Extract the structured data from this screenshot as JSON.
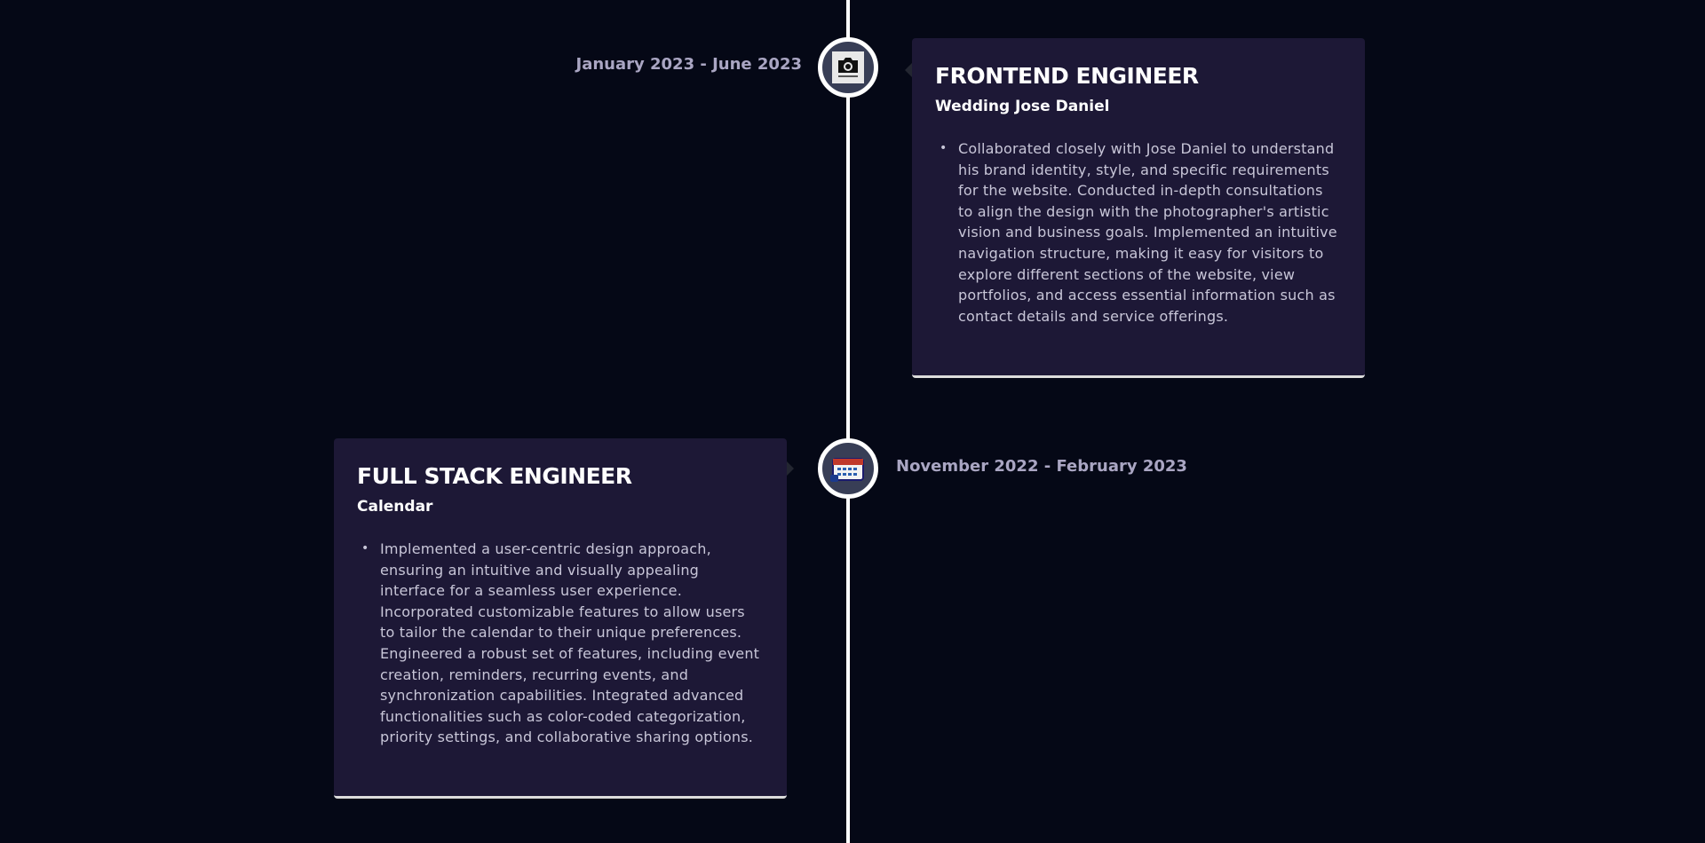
{
  "experiences": [
    {
      "title": "FRONTEND ENGINEER",
      "company": "Wedding Jose Daniel",
      "date": "January 2023 - June 2023",
      "icon": "camera-logo-icon",
      "points": [
        "Collaborated closely with Jose Daniel to understand his brand identity, style, and specific requirements for the website. Conducted in-depth consultations to align the design with the photographer's artistic vision and business goals. Implemented an intuitive navigation structure, making it easy for visitors to explore different sections of the website, view portfolios, and access essential information such as contact details and service offerings."
      ]
    },
    {
      "title": "FULL STACK ENGINEER",
      "company": "Calendar",
      "date": "November 2022 - February 2023",
      "icon": "calendar-icon",
      "points": [
        "Implemented a user-centric design approach, ensuring an intuitive and visually appealing interface for a seamless user experience. Incorporated customizable features to allow users to tailor the calendar to their unique preferences. Engineered a robust set of features, including event creation, reminders, recurring events, and synchronization capabilities. Integrated advanced functionalities such as color-coded categorization, priority settings, and collaborative sharing options."
      ]
    }
  ],
  "colors": {
    "background": "#050816",
    "card": "#1d1836",
    "icon_bg": "#383e56",
    "line": "#ffffff",
    "date_text": "#aaa6c3"
  }
}
